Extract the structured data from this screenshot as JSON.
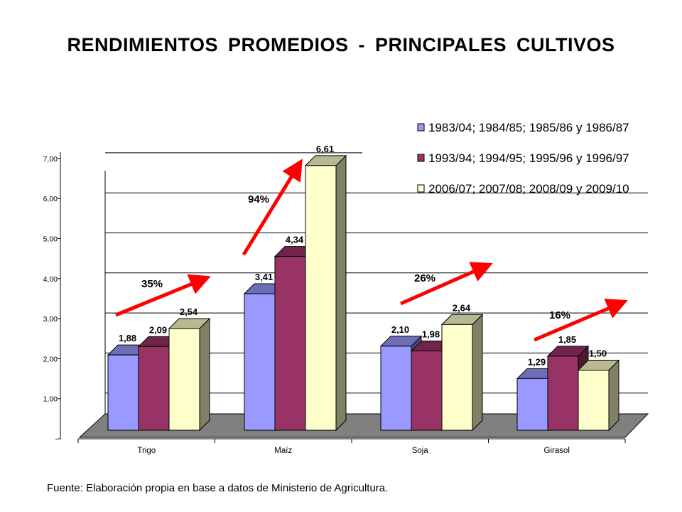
{
  "title": "RENDIMIENTOS PROMEDIOS - PRINCIPALES CULTIVOS",
  "source": "Fuente: Elaboración propia en base a datos de Ministerio de Agricultura.",
  "chart_data": {
    "type": "bar",
    "style": "3d-clustered-column",
    "categories": [
      "Trigo",
      "Maíz",
      "Soja",
      "Girasol"
    ],
    "series": [
      {
        "name": "1983/04; 1984/85; 1985/86 y 1986/87",
        "color": "#9999FF",
        "values": [
          1.88,
          3.41,
          2.1,
          1.29
        ],
        "labels": [
          "1,88",
          "3,41",
          "2,10",
          "1,29"
        ]
      },
      {
        "name": "1993/94; 1994/95; 1995/96 y 1996/97",
        "color": "#993366",
        "values": [
          2.09,
          4.34,
          1.98,
          1.85
        ],
        "labels": [
          "2,09",
          "4,34",
          "1,98",
          "1,85"
        ]
      },
      {
        "name": "2006/07; 2007/08; 2008/09 y 2009/10",
        "color": "#FFFFCC",
        "values": [
          2.54,
          6.61,
          2.64,
          1.5
        ],
        "labels": [
          "2,54",
          "6,61",
          "2,64",
          "1,50"
        ]
      }
    ],
    "y_ticks": [
      "-",
      "1,00",
      "2,00",
      "3,00",
      "4,00",
      "5,00",
      "6,00",
      "7,00"
    ],
    "ylim": [
      0,
      7
    ],
    "grid": true,
    "legend": "top-right",
    "growth_annotations": [
      {
        "category": "Trigo",
        "label": "35%"
      },
      {
        "category": "Maíz",
        "label": "94%"
      },
      {
        "category": "Soja",
        "label": "26%"
      },
      {
        "category": "Girasol",
        "label": "16%"
      }
    ],
    "arrow_color": "#FF0000"
  }
}
